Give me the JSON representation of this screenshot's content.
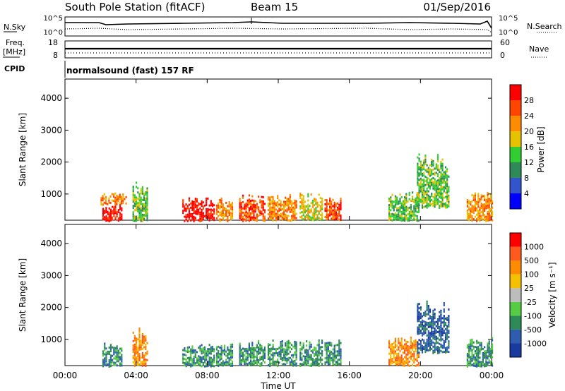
{
  "header": {
    "title": "South Pole Station (fitACF)",
    "beam": "Beam 15",
    "date": "01/Sep/2016"
  },
  "left_labels": {
    "nsky": "N.Sky",
    "freq_line1": "Freq.",
    "freq_line2": "[MHz]",
    "cpid": "CPID"
  },
  "right_labels": {
    "nsearch": "N.Search",
    "nave": "Nave"
  },
  "cpid_text": "normalsound (fast) 157 RF",
  "panel_ticks": {
    "noise_left_top": "10^5",
    "noise_left_bottom": "10^0",
    "noise_right_top": "10^5",
    "noise_right_bottom": "10^0",
    "freq_left_top": "18",
    "freq_left_bottom": "8",
    "nave_right_top": "60",
    "nave_right_bottom": "0"
  },
  "colors": {
    "power": [
      "#0000ff",
      "#3355cc",
      "#2e8b57",
      "#32cd32",
      "#e6c200",
      "#ff8c00",
      "#ff4500",
      "#ff0000"
    ],
    "velocity": [
      "#1a3aa0",
      "#2e5db0",
      "#2e8b57",
      "#55cc44",
      "#bdbdbd",
      "#f5c000",
      "#ff8c00",
      "#ff5a1e",
      "#ff0000"
    ]
  },
  "chart_data": [
    {
      "type": "heatmap",
      "name": "power",
      "ylabel": "Slant Range [km]",
      "yticks": [
        1000,
        2000,
        3000,
        4000
      ],
      "ylim": [
        180,
        4600
      ],
      "xlim": [
        0,
        24
      ],
      "colorbar_label": "Power [dB]",
      "colorbar_ticks": [
        "4",
        "8",
        "12",
        "16",
        "20",
        "24",
        "28"
      ],
      "regions": [
        {
          "t0": 2.1,
          "t1": 3.2,
          "r0": 180,
          "r1": 700,
          "level": 7
        },
        {
          "t0": 2.0,
          "t1": 3.4,
          "r0": 700,
          "r1": 1050,
          "level": 5
        },
        {
          "t0": 3.8,
          "t1": 4.6,
          "r0": 180,
          "r1": 1400,
          "level": 3
        },
        {
          "t0": 6.6,
          "t1": 8.4,
          "r0": 180,
          "r1": 900,
          "level": 7
        },
        {
          "t0": 8.5,
          "t1": 9.4,
          "r0": 180,
          "r1": 900,
          "level": 5
        },
        {
          "t0": 9.8,
          "t1": 11.2,
          "r0": 180,
          "r1": 1000,
          "level": 6
        },
        {
          "t0": 11.4,
          "t1": 13.0,
          "r0": 200,
          "r1": 1000,
          "level": 5
        },
        {
          "t0": 13.2,
          "t1": 14.5,
          "r0": 200,
          "r1": 1050,
          "level": 4
        },
        {
          "t0": 14.6,
          "t1": 15.5,
          "r0": 200,
          "r1": 1000,
          "level": 6
        },
        {
          "t0": 18.2,
          "t1": 19.9,
          "r0": 200,
          "r1": 1100,
          "level": 3
        },
        {
          "t0": 19.8,
          "t1": 21.6,
          "r0": 600,
          "r1": 2300,
          "level": 3
        },
        {
          "t0": 22.6,
          "t1": 24.0,
          "r0": 180,
          "r1": 1100,
          "level": 5
        }
      ],
      "xticks": [
        "00:00",
        "04:00",
        "08:00",
        "12:00",
        "16:00",
        "20:00",
        "00:00"
      ]
    },
    {
      "type": "heatmap",
      "name": "velocity",
      "ylabel": "Slant Range [km]",
      "yticks": [
        1000,
        2000,
        3000,
        4000
      ],
      "ylim": [
        180,
        4600
      ],
      "xlim": [
        0,
        24
      ],
      "xlabel": "Time UT",
      "colorbar_label": "Velocity [m s⁻¹]",
      "colorbar_ticks": [
        "1000",
        "500",
        "100",
        "25",
        "-25",
        "-100",
        "-500",
        "-1000"
      ],
      "regions": [
        {
          "t0": 2.1,
          "t1": 3.2,
          "r0": 180,
          "r1": 900,
          "level": 2
        },
        {
          "t0": 3.8,
          "t1": 4.6,
          "r0": 200,
          "r1": 1400,
          "level": 6
        },
        {
          "t0": 6.6,
          "t1": 8.4,
          "r0": 180,
          "r1": 900,
          "level": 2
        },
        {
          "t0": 8.5,
          "t1": 9.4,
          "r0": 200,
          "r1": 900,
          "level": 2
        },
        {
          "t0": 9.8,
          "t1": 11.2,
          "r0": 200,
          "r1": 1000,
          "level": 2
        },
        {
          "t0": 11.4,
          "t1": 13.0,
          "r0": 200,
          "r1": 1000,
          "level": 2
        },
        {
          "t0": 13.2,
          "t1": 14.5,
          "r0": 200,
          "r1": 1000,
          "level": 2
        },
        {
          "t0": 14.6,
          "t1": 15.5,
          "r0": 200,
          "r1": 1000,
          "level": 2
        },
        {
          "t0": 18.2,
          "t1": 19.9,
          "r0": 200,
          "r1": 1100,
          "level": 6
        },
        {
          "t0": 19.8,
          "t1": 21.6,
          "r0": 600,
          "r1": 2300,
          "level": 1
        },
        {
          "t0": 22.6,
          "t1": 24.0,
          "r0": 180,
          "r1": 1100,
          "level": 2
        }
      ],
      "xticks": [
        "00:00",
        "04:00",
        "08:00",
        "12:00",
        "16:00",
        "20:00",
        "00:00"
      ]
    }
  ]
}
